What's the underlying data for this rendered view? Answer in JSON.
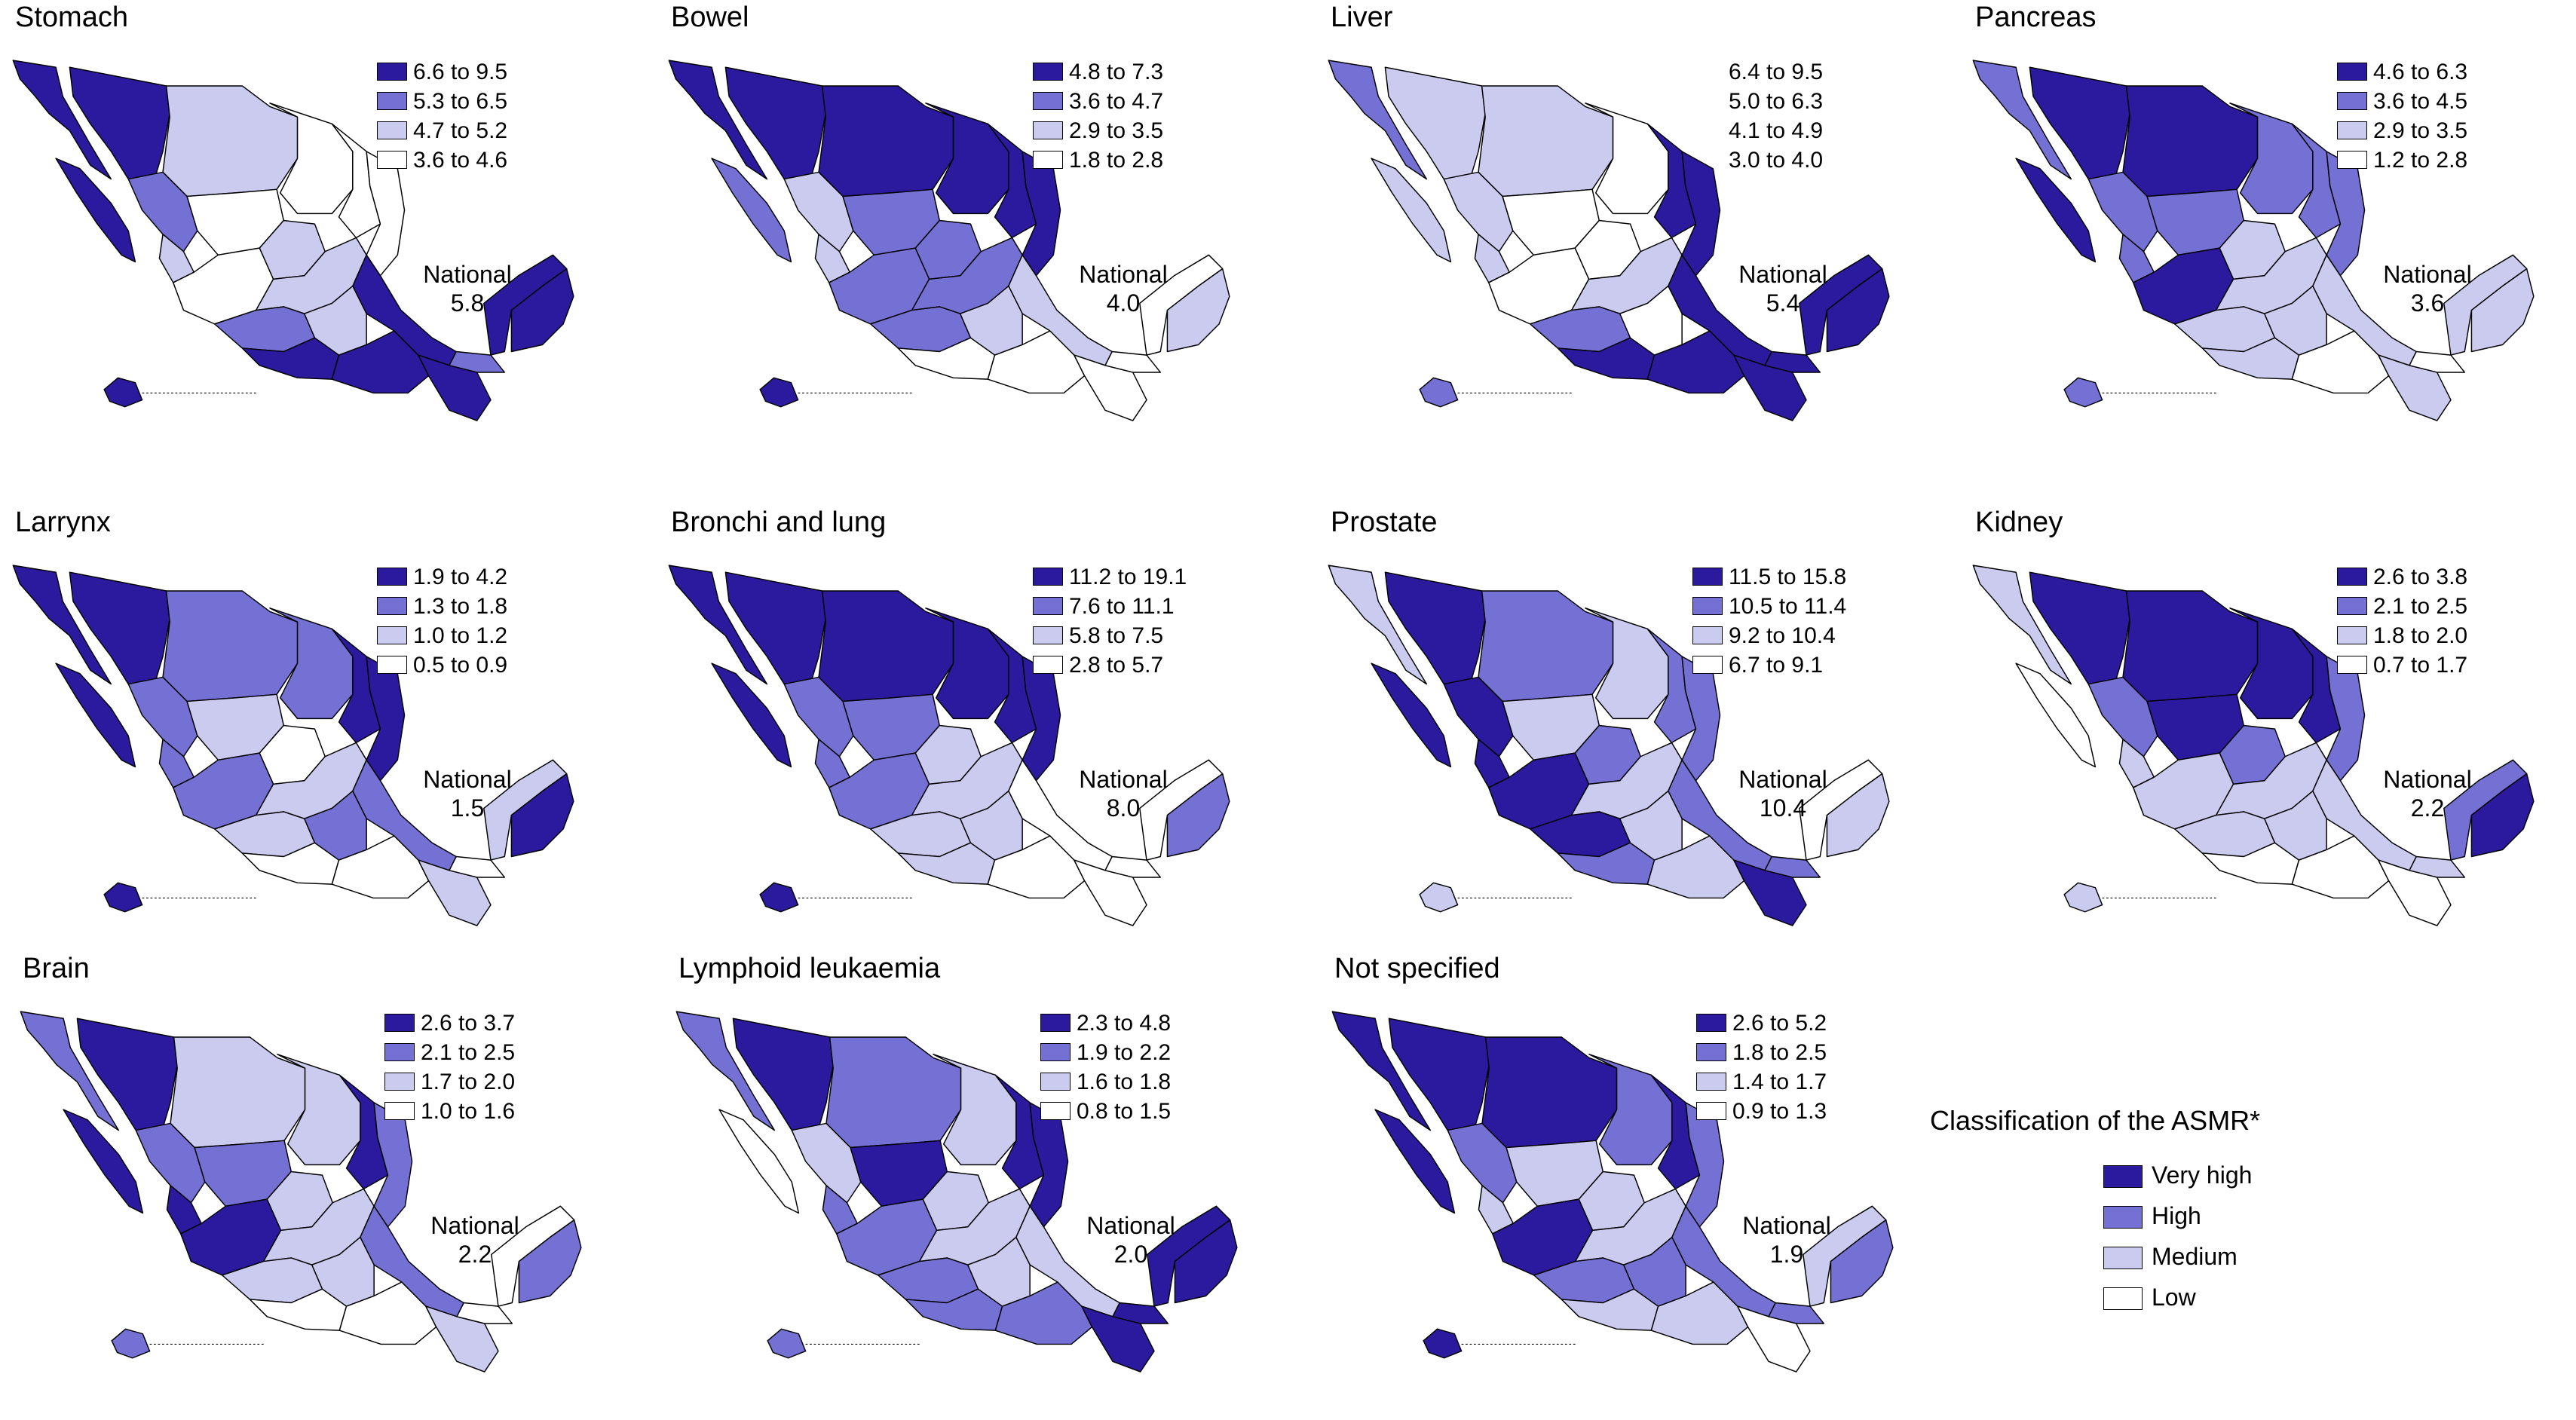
{
  "colors": {
    "very_high": "#2c1a9e",
    "high": "#7470d4",
    "medium": "#cbcaef",
    "low": "#ffffff"
  },
  "panels": [
    {
      "title": "Stomach",
      "national_label": "National",
      "national_value": "5.8",
      "legend": [
        {
          "label": "6.6 to 9.5",
          "level": "very_high"
        },
        {
          "label": "5.3 to 6.5",
          "level": "high"
        },
        {
          "label": "4.7 to 5.2",
          "level": "medium"
        },
        {
          "label": "3.6 to 4.6",
          "level": "low"
        }
      ]
    },
    {
      "title": "Bowel",
      "national_label": "National",
      "national_value": "4.0",
      "legend": [
        {
          "label": "4.8 to 7.3",
          "level": "very_high"
        },
        {
          "label": "3.6 to 4.7",
          "level": "high"
        },
        {
          "label": "2.9 to 3.5",
          "level": "medium"
        },
        {
          "label": "1.8 to 2.8",
          "level": "low"
        }
      ]
    },
    {
      "title": "Liver",
      "national_label": "National",
      "national_value": "5.4",
      "legend": [
        {
          "label": "6.4 to 9.5",
          "level": "none"
        },
        {
          "label": "5.0 to 6.3",
          "level": "none"
        },
        {
          "label": "4.1 to 4.9",
          "level": "none"
        },
        {
          "label": "3.0 to 4.0",
          "level": "none"
        }
      ]
    },
    {
      "title": "Pancreas",
      "national_label": "National",
      "national_value": "3.6",
      "legend": [
        {
          "label": "4.6 to 6.3",
          "level": "very_high"
        },
        {
          "label": "3.6 to 4.5",
          "level": "high"
        },
        {
          "label": "2.9 to 3.5",
          "level": "medium"
        },
        {
          "label": "1.2 to 2.8",
          "level": "low"
        }
      ]
    },
    {
      "title": "Larrynx",
      "national_label": "National",
      "national_value": "1.5",
      "legend": [
        {
          "label": "1.9 to 4.2",
          "level": "very_high"
        },
        {
          "label": "1.3 to 1.8",
          "level": "high"
        },
        {
          "label": "1.0 to 1.2",
          "level": "medium"
        },
        {
          "label": "0.5 to 0.9",
          "level": "low"
        }
      ]
    },
    {
      "title": "Bronchi and lung",
      "national_label": "National",
      "national_value": "8.0",
      "legend": [
        {
          "label": "11.2 to 19.1",
          "level": "very_high"
        },
        {
          "label": "7.6 to 11.1",
          "level": "high"
        },
        {
          "label": "5.8 to 7.5",
          "level": "medium"
        },
        {
          "label": "2.8 to 5.7",
          "level": "low"
        }
      ]
    },
    {
      "title": "Prostate",
      "national_label": "National",
      "national_value": "10.4",
      "legend": [
        {
          "label": "11.5 to 15.8",
          "level": "very_high"
        },
        {
          "label": "10.5 to 11.4",
          "level": "high"
        },
        {
          "label": "9.2 to 10.4",
          "level": "medium"
        },
        {
          "label": "6.7 to 9.1",
          "level": "low"
        }
      ]
    },
    {
      "title": "Kidney",
      "national_label": "National",
      "national_value": "2.2",
      "legend": [
        {
          "label": "2.6 to 3.8",
          "level": "very_high"
        },
        {
          "label": "2.1 to 2.5",
          "level": "high"
        },
        {
          "label": "1.8 to 2.0",
          "level": "medium"
        },
        {
          "label": "0.7 to 1.7",
          "level": "low"
        }
      ]
    },
    {
      "title": "Brain",
      "national_label": "National",
      "national_value": "2.2",
      "legend": [
        {
          "label": "2.6 to 3.7",
          "level": "very_high"
        },
        {
          "label": "2.1 to 2.5",
          "level": "high"
        },
        {
          "label": "1.7 to 2.0",
          "level": "medium"
        },
        {
          "label": "1.0 to 1.6",
          "level": "low"
        }
      ]
    },
    {
      "title": "Lymphoid leukaemia",
      "national_label": "National",
      "national_value": "2.0",
      "legend": [
        {
          "label": "2.3 to 4.8",
          "level": "very_high"
        },
        {
          "label": "1.9 to 2.2",
          "level": "high"
        },
        {
          "label": "1.6 to 1.8",
          "level": "medium"
        },
        {
          "label": "0.8 to 1.5",
          "level": "low"
        }
      ]
    },
    {
      "title": "Not specified",
      "national_label": "National",
      "national_value": "1.9",
      "legend": [
        {
          "label": "2.6 to 5.2",
          "level": "very_high"
        },
        {
          "label": "1.8 to 2.5",
          "level": "high"
        },
        {
          "label": "1.4 to 1.7",
          "level": "medium"
        },
        {
          "label": "0.9 to 1.3",
          "level": "low"
        }
      ]
    }
  ],
  "classification_legend": {
    "title": "Classification of the ASMR*",
    "items": [
      {
        "label": "Very high",
        "level": "very_high"
      },
      {
        "label": "High",
        "level": "high"
      },
      {
        "label": "Medium",
        "level": "medium"
      },
      {
        "label": "Low",
        "level": "low"
      }
    ]
  }
}
